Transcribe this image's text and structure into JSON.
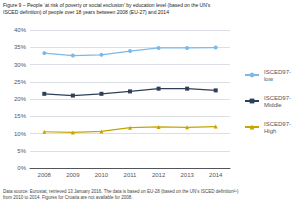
{
  "chart_data": {
    "type": "line",
    "title": "Figure 9 – People ‘at risk of poverty or social exclusion’ by education level (based on the UN’s",
    "subtitle": "ISCED definition) of people over 18 years between 2008 (EU-27) and 2014",
    "annotations": [
      "Data source: Eurostat, retrieved 13 January 2016. The data is based on EU-28 (based on the UN’s ISCED definition²⁵)\nfrom 2010 to 2014. Figures for Croatia are not available for 2008."
    ],
    "categories": [
      "2008",
      "2009",
      "2010",
      "2011",
      "2012",
      "2013",
      "2014"
    ],
    "series": [
      {
        "name": "ISCED97-\nlow",
        "color": "#7CB9E8",
        "marker": "circle",
        "values": [
          0.333,
          0.326,
          0.328,
          0.339,
          0.348,
          0.348,
          0.349
        ]
      },
      {
        "name": "ISCED97-\nMiddle",
        "color": "#2E4057",
        "marker": "square",
        "values": [
          0.215,
          0.21,
          0.215,
          0.222,
          0.23,
          0.23,
          0.225
        ]
      },
      {
        "name": "ISCED97-\nHigh",
        "color": "#C8A400",
        "marker": "triangle",
        "values": [
          0.105,
          0.103,
          0.106,
          0.117,
          0.119,
          0.118,
          0.12
        ]
      }
    ],
    "ylim": [
      0,
      0.4
    ],
    "yticks": [
      {
        "value": 0,
        "label": "0%"
      },
      {
        "value": 0.05,
        "label": "5%"
      },
      {
        "value": 0.1,
        "label": "10%"
      },
      {
        "value": 0.15,
        "label": "15%"
      },
      {
        "value": 0.2,
        "label": "20%"
      },
      {
        "value": 0.25,
        "label": "25%"
      },
      {
        "value": 0.3,
        "label": "30%"
      },
      {
        "value": 0.35,
        "label": "35%"
      },
      {
        "value": 0.4,
        "label": "40%"
      }
    ],
    "grid": true,
    "legend": "right"
  }
}
